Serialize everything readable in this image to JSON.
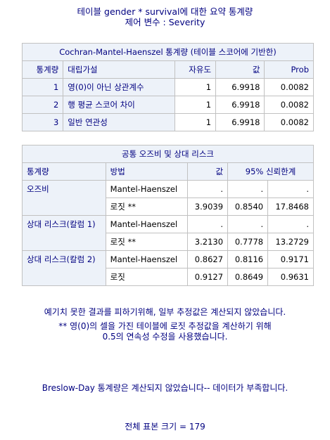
{
  "title": {
    "line1": "테이블 gender * survival에 대한 요약 통계량",
    "line2": "제어 변수 : Severity"
  },
  "cmh": {
    "caption": "Cochran-Mantel-Haenszel 통계량 (테이블 스코어에 기반한)",
    "headers": [
      "통계량",
      "대립가설",
      "자유도",
      "값",
      "Prob"
    ],
    "rows": [
      {
        "no": "1",
        "alt": "영(0)이 아닌 상관계수",
        "df": "1",
        "value": "6.9918",
        "prob": "0.0082"
      },
      {
        "no": "2",
        "alt": "행 평균 스코어 차이",
        "df": "1",
        "value": "6.9918",
        "prob": "0.0082"
      },
      {
        "no": "3",
        "alt": "일반 연관성",
        "df": "1",
        "value": "6.9918",
        "prob": "0.0082"
      }
    ]
  },
  "odds": {
    "caption": "공통 오즈비 및 상대 리스크",
    "headers": [
      "통계량",
      "방법",
      "값",
      "95% 신뢰한계"
    ],
    "rows": [
      {
        "stat": "오즈비",
        "method": "Mantel-Haenszel",
        "value": ".",
        "lo": ".",
        "hi": "."
      },
      {
        "stat": "",
        "method": "로짓 **",
        "value": "3.9039",
        "lo": "0.8540",
        "hi": "17.8468"
      },
      {
        "stat": "상대 리스크(칼럼 1)",
        "method": "Mantel-Haenszel",
        "value": ".",
        "lo": ".",
        "hi": "."
      },
      {
        "stat": "",
        "method": "로짓 **",
        "value": "3.2130",
        "lo": "0.7778",
        "hi": "13.2729"
      },
      {
        "stat": "상대 리스크(칼럼 2)",
        "method": "Mantel-Haenszel",
        "value": "0.8627",
        "lo": "0.8116",
        "hi": "0.9171"
      },
      {
        "stat": "",
        "method": "로짓",
        "value": "0.9127",
        "lo": "0.8649",
        "hi": "0.9631"
      }
    ]
  },
  "notes": {
    "n1": "예기치 못한 결과를 피하기위해, 일부 추정값은 계산되지 않았습니다.",
    "n2": "** 영(0)의 셀을 가진 테이블에 로짓 추정값을 계산하기 위해",
    "n3": "0.5의 연속성 수정을 사용했습니다.",
    "n4": "Breslow-Day 통계량은 계산되지 않았습니다-- 데이터가 부족합니다.",
    "n5": "전체 표본 크기 = 179"
  }
}
